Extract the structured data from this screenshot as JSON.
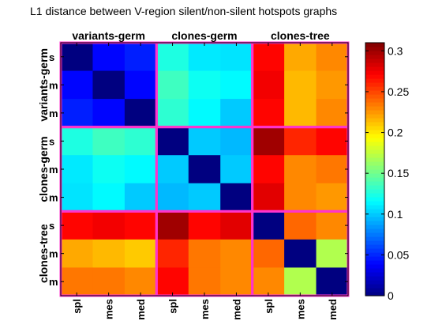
{
  "chart_data": {
    "type": "heatmap",
    "title": "L1 distance between V-region silent/non-silent hotspots graphs",
    "group_labels": [
      "variants-germ",
      "clones-germ",
      "clones-tree"
    ],
    "tick_labels": [
      "spl",
      "mes",
      "med",
      "spl",
      "mes",
      "med",
      "spl",
      "mes",
      "med"
    ],
    "row_tick_labels": [
      "s",
      "m",
      "m",
      "s",
      "m",
      "m",
      "s",
      "m",
      "m"
    ],
    "values": [
      [
        0.0,
        0.04,
        0.048,
        0.125,
        0.11,
        0.108,
        0.27,
        0.22,
        0.23
      ],
      [
        0.04,
        0.0,
        0.04,
        0.135,
        0.12,
        0.115,
        0.275,
        0.215,
        0.225
      ],
      [
        0.048,
        0.04,
        0.0,
        0.13,
        0.115,
        0.1,
        0.27,
        0.215,
        0.23
      ],
      [
        0.125,
        0.135,
        0.13,
        0.0,
        0.1,
        0.095,
        0.3,
        0.26,
        0.27
      ],
      [
        0.11,
        0.12,
        0.115,
        0.1,
        0.0,
        0.1,
        0.27,
        0.23,
        0.235
      ],
      [
        0.108,
        0.115,
        0.1,
        0.095,
        0.1,
        0.0,
        0.28,
        0.23,
        0.225
      ],
      [
        0.27,
        0.275,
        0.27,
        0.3,
        0.27,
        0.28,
        0.0,
        0.24,
        0.23
      ],
      [
        0.22,
        0.215,
        0.21,
        0.26,
        0.235,
        0.23,
        0.24,
        0.0,
        0.17
      ],
      [
        0.235,
        0.235,
        0.23,
        0.27,
        0.235,
        0.23,
        0.23,
        0.17,
        0.0
      ]
    ],
    "colorbar": {
      "min": 0,
      "max": 0.31,
      "ticks": [
        "0",
        "0.05",
        "0.1",
        "0.15",
        "0.2",
        "0.25",
        "0.3"
      ],
      "colormap": "jet"
    },
    "separator_color": "#ff33cc",
    "grid": false,
    "legend": "colorbar-right"
  }
}
